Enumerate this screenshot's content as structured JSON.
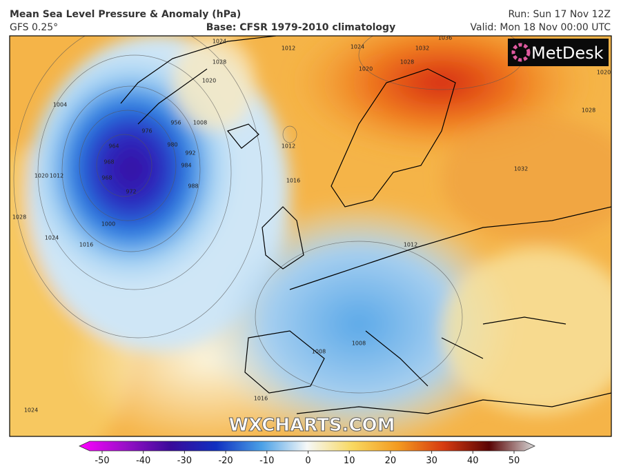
{
  "header": {
    "title": "Mean Sea Level Pressure & Anomaly (hPa)",
    "model": "GFS 0.25°",
    "base": "Base: CFSR 1979-2010 climatology",
    "run": "Run: Sun 17 Nov 12Z",
    "valid": "Valid: Mon 18 Nov 00:00 UTC"
  },
  "logo": "MetDesk",
  "watermark": "WXCHARTS.COM",
  "isobar_labels": [
    1004,
    1012,
    1020,
    1028,
    1024,
    1016,
    1000,
    964,
    968,
    968,
    972,
    976,
    980,
    984,
    988,
    992,
    956,
    1008,
    1012,
    1016,
    1012,
    1024,
    1032,
    1028,
    1020,
    1036,
    1032,
    1028,
    1020,
    1012,
    1008,
    1008,
    1016,
    1024,
    1028,
    1020,
    1024
  ],
  "colorbar": {
    "ticks": [
      -50,
      -40,
      -30,
      -20,
      -10,
      0,
      10,
      20,
      30,
      40,
      50
    ]
  }
}
